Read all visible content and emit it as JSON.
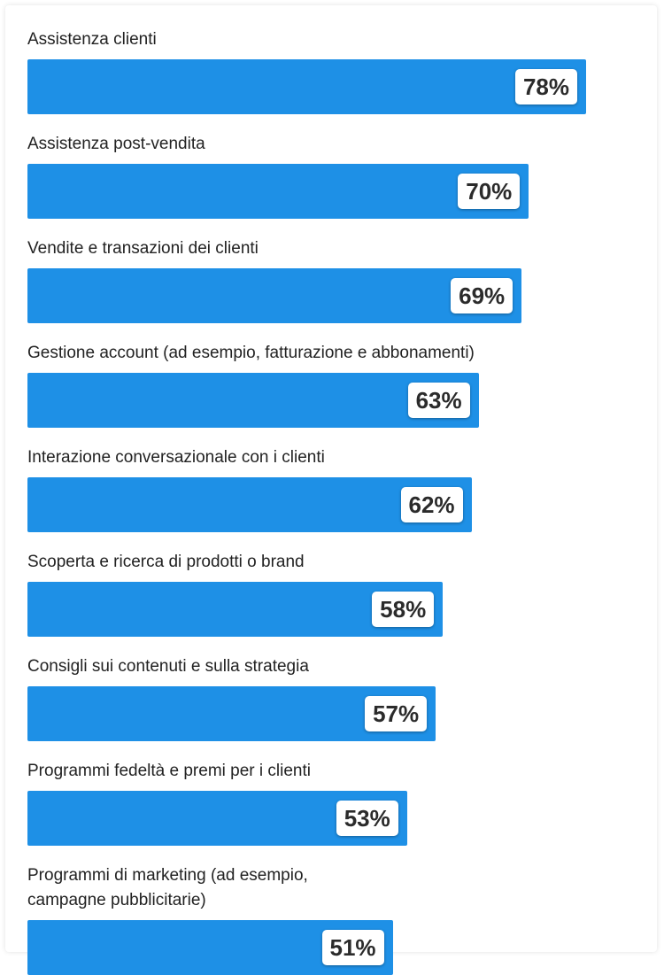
{
  "chart_data": {
    "type": "bar",
    "orientation": "horizontal",
    "bar_color": "#1e90e6",
    "xlim": [
      0,
      100
    ],
    "categories": [
      "Assistenza clienti",
      "Assistenza post-vendita",
      "Vendite e transazioni dei clienti",
      "Gestione account (ad esempio, fatturazione e abbonamenti)",
      "Interazione conversazionale con i clienti",
      "Scoperta e ricerca di prodotti o brand",
      "Consigli sui contenuti e sulla strategia",
      "Programmi fedeltà e premi per i clienti",
      "Programmi di marketing (ad esempio,\ncampagne pubblicitarie)"
    ],
    "values": [
      78,
      70,
      69,
      63,
      62,
      58,
      57,
      53,
      51
    ],
    "value_labels": [
      "78%",
      "70%",
      "69%",
      "63%",
      "62%",
      "58%",
      "57%",
      "53%",
      "51%"
    ]
  }
}
